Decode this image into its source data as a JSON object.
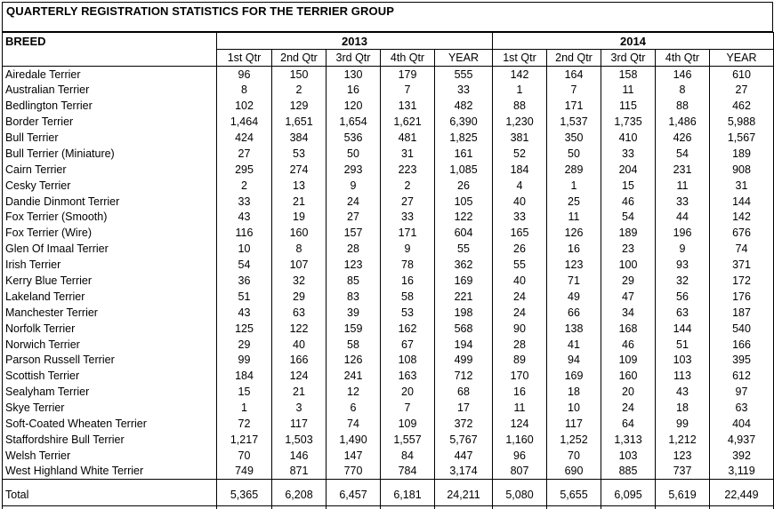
{
  "title": "QUARTERLY REGISTRATION STATISTICS FOR THE TERRIER GROUP",
  "table": {
    "breed_header": "BREED",
    "year_groups": [
      "2013",
      "2014"
    ],
    "quarter_headers": [
      "1st Qtr",
      "2nd Qtr",
      "3rd Qtr",
      "4th Qtr",
      "YEAR"
    ],
    "rows": [
      {
        "breed": "Airedale Terrier",
        "values": [
          "96",
          "150",
          "130",
          "179",
          "555",
          "142",
          "164",
          "158",
          "146",
          "610"
        ]
      },
      {
        "breed": "Australian Terrier",
        "values": [
          "8",
          "2",
          "16",
          "7",
          "33",
          "1",
          "7",
          "11",
          "8",
          "27"
        ]
      },
      {
        "breed": "Bedlington Terrier",
        "values": [
          "102",
          "129",
          "120",
          "131",
          "482",
          "88",
          "171",
          "115",
          "88",
          "462"
        ]
      },
      {
        "breed": "Border Terrier",
        "values": [
          "1,464",
          "1,651",
          "1,654",
          "1,621",
          "6,390",
          "1,230",
          "1,537",
          "1,735",
          "1,486",
          "5,988"
        ]
      },
      {
        "breed": "Bull Terrier",
        "values": [
          "424",
          "384",
          "536",
          "481",
          "1,825",
          "381",
          "350",
          "410",
          "426",
          "1,567"
        ]
      },
      {
        "breed": "Bull Terrier (Miniature)",
        "values": [
          "27",
          "53",
          "50",
          "31",
          "161",
          "52",
          "50",
          "33",
          "54",
          "189"
        ]
      },
      {
        "breed": "Cairn Terrier",
        "values": [
          "295",
          "274",
          "293",
          "223",
          "1,085",
          "184",
          "289",
          "204",
          "231",
          "908"
        ]
      },
      {
        "breed": "Cesky Terrier",
        "values": [
          "2",
          "13",
          "9",
          "2",
          "26",
          "4",
          "1",
          "15",
          "11",
          "31"
        ]
      },
      {
        "breed": "Dandie Dinmont Terrier",
        "values": [
          "33",
          "21",
          "24",
          "27",
          "105",
          "40",
          "25",
          "46",
          "33",
          "144"
        ]
      },
      {
        "breed": "Fox Terrier (Smooth)",
        "values": [
          "43",
          "19",
          "27",
          "33",
          "122",
          "33",
          "11",
          "54",
          "44",
          "142"
        ]
      },
      {
        "breed": "Fox Terrier (Wire)",
        "values": [
          "116",
          "160",
          "157",
          "171",
          "604",
          "165",
          "126",
          "189",
          "196",
          "676"
        ]
      },
      {
        "breed": "Glen Of Imaal Terrier",
        "values": [
          "10",
          "8",
          "28",
          "9",
          "55",
          "26",
          "16",
          "23",
          "9",
          "74"
        ]
      },
      {
        "breed": "Irish Terrier",
        "values": [
          "54",
          "107",
          "123",
          "78",
          "362",
          "55",
          "123",
          "100",
          "93",
          "371"
        ]
      },
      {
        "breed": "Kerry Blue Terrier",
        "values": [
          "36",
          "32",
          "85",
          "16",
          "169",
          "40",
          "71",
          "29",
          "32",
          "172"
        ]
      },
      {
        "breed": "Lakeland Terrier",
        "values": [
          "51",
          "29",
          "83",
          "58",
          "221",
          "24",
          "49",
          "47",
          "56",
          "176"
        ]
      },
      {
        "breed": "Manchester Terrier",
        "values": [
          "43",
          "63",
          "39",
          "53",
          "198",
          "24",
          "66",
          "34",
          "63",
          "187"
        ]
      },
      {
        "breed": "Norfolk Terrier",
        "values": [
          "125",
          "122",
          "159",
          "162",
          "568",
          "90",
          "138",
          "168",
          "144",
          "540"
        ]
      },
      {
        "breed": "Norwich Terrier",
        "values": [
          "29",
          "40",
          "58",
          "67",
          "194",
          "28",
          "41",
          "46",
          "51",
          "166"
        ]
      },
      {
        "breed": "Parson Russell Terrier",
        "values": [
          "99",
          "166",
          "126",
          "108",
          "499",
          "89",
          "94",
          "109",
          "103",
          "395"
        ]
      },
      {
        "breed": "Scottish Terrier",
        "values": [
          "184",
          "124",
          "241",
          "163",
          "712",
          "170",
          "169",
          "160",
          "113",
          "612"
        ]
      },
      {
        "breed": "Sealyham Terrier",
        "values": [
          "15",
          "21",
          "12",
          "20",
          "68",
          "16",
          "18",
          "20",
          "43",
          "97"
        ]
      },
      {
        "breed": "Skye Terrier",
        "values": [
          "1",
          "3",
          "6",
          "7",
          "17",
          "11",
          "10",
          "24",
          "18",
          "63"
        ]
      },
      {
        "breed": "Soft-Coated Wheaten Terrier",
        "values": [
          "72",
          "117",
          "74",
          "109",
          "372",
          "124",
          "117",
          "64",
          "99",
          "404"
        ]
      },
      {
        "breed": "Staffordshire Bull Terrier",
        "values": [
          "1,217",
          "1,503",
          "1,490",
          "1,557",
          "5,767",
          "1,160",
          "1,252",
          "1,313",
          "1,212",
          "4,937"
        ]
      },
      {
        "breed": "Welsh Terrier",
        "values": [
          "70",
          "146",
          "147",
          "84",
          "447",
          "96",
          "70",
          "103",
          "123",
          "392"
        ]
      },
      {
        "breed": "West Highland White Terrier",
        "values": [
          "749",
          "871",
          "770",
          "784",
          "3,174",
          "807",
          "690",
          "885",
          "737",
          "3,119"
        ]
      }
    ],
    "total": {
      "label": "Total",
      "values": [
        "5,365",
        "6,208",
        "6,457",
        "6,181",
        "24,211",
        "5,080",
        "5,655",
        "6,095",
        "5,619",
        "22,449"
      ]
    }
  },
  "colors": {
    "background": "#ffffff",
    "text": "#000000",
    "border": "#000000"
  }
}
